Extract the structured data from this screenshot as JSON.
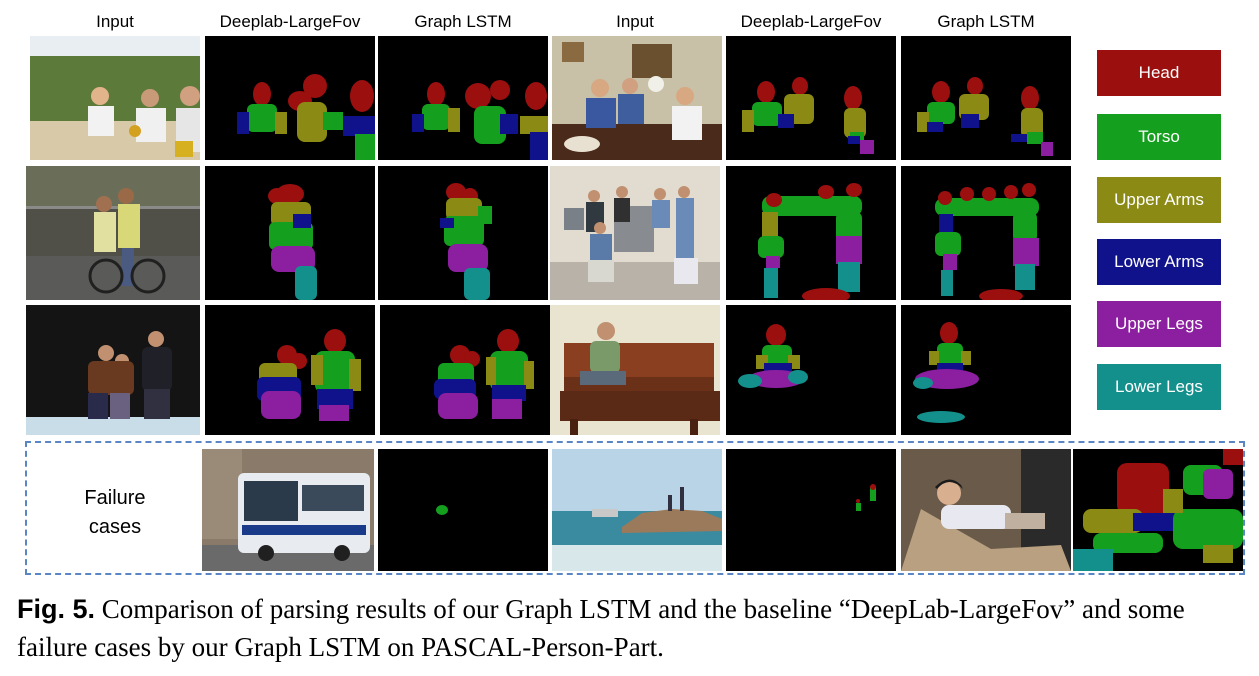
{
  "headers": [
    "Input",
    "Deeplab-LargeFov",
    "Graph LSTM",
    "Input",
    "Deeplab-LargeFov",
    "Graph LSTM"
  ],
  "legend": [
    {
      "label": "Head",
      "color": "#9b0f0f"
    },
    {
      "label": "Torso",
      "color": "#14a01e"
    },
    {
      "label": "Upper Arms",
      "color": "#8a8a14"
    },
    {
      "label": "Lower Arms",
      "color": "#10128c"
    },
    {
      "label": "Upper Legs",
      "color": "#8c1ea0"
    },
    {
      "label": "Lower Legs",
      "color": "#14908c"
    }
  ],
  "failure": {
    "line1": "Failure",
    "line2": "cases"
  },
  "caption": {
    "fig_label": "Fig. 5.",
    "text": " Comparison of parsing results of our Graph LSTM and the baseline “DeepLab-LargeFov” and some failure cases by our Graph LSTM on PASCAL-Person-Part."
  }
}
